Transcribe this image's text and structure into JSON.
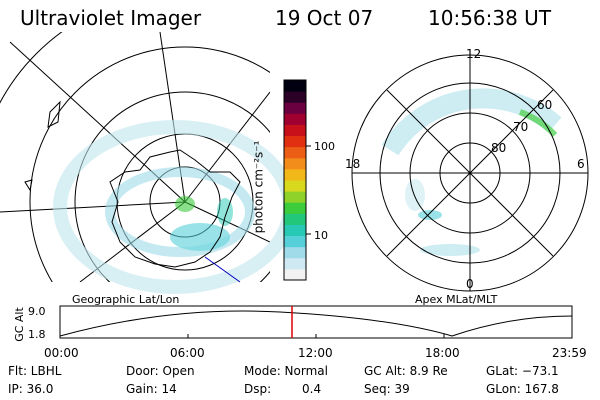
{
  "header": {
    "title": "Ultraviolet Imager",
    "date": "19 Oct 07",
    "time": "10:56:38 UT"
  },
  "colorbar": {
    "unit_label": "photon cm⁻²s⁻¹",
    "ticks": [
      "100",
      "10"
    ],
    "colors": [
      "#f2f2f2",
      "#cfe9f2",
      "#9fdbe8",
      "#55d0d8",
      "#28c9b4",
      "#22c77a",
      "#3ccc3c",
      "#8fd22a",
      "#d8d81f",
      "#f2b81a",
      "#f28c1a",
      "#ec5d16",
      "#e03010",
      "#c8101a",
      "#a00030",
      "#6a0040",
      "#2a0026",
      "#000010"
    ]
  },
  "geo_panel": {
    "label": "Geographic Lat/Lon"
  },
  "apex_panel": {
    "label": "Apex MLat/MLT",
    "mlt_labels": {
      "top": "12",
      "left": "18",
      "right": "6",
      "bottom": "0"
    },
    "lat_labels": [
      "60",
      "70",
      "80"
    ]
  },
  "timeline": {
    "axis_label": "GC Alt",
    "y_ticks": [
      "9.0",
      "1.8"
    ],
    "x_ticks": [
      "00:00",
      "06:00",
      "12:00",
      "18:00",
      "23:59"
    ]
  },
  "status": {
    "flt": "Flt: LBHL",
    "ip": "IP: 36.0",
    "door": "Door: Open",
    "gain": "Gain: 14",
    "mode": "Mode: Normal",
    "dsp_label": "Dsp:",
    "dsp_value": "0.4",
    "gc_alt": "GC Alt: 8.9 Re",
    "seq": "Seq: 39",
    "glat": "GLat: −73.1",
    "glon": "GLon: 167.8"
  },
  "colors": {
    "timeline_marker": "#e00000",
    "aurora_cyan": "#55d0d8",
    "aurora_green": "#3ccc3c"
  }
}
